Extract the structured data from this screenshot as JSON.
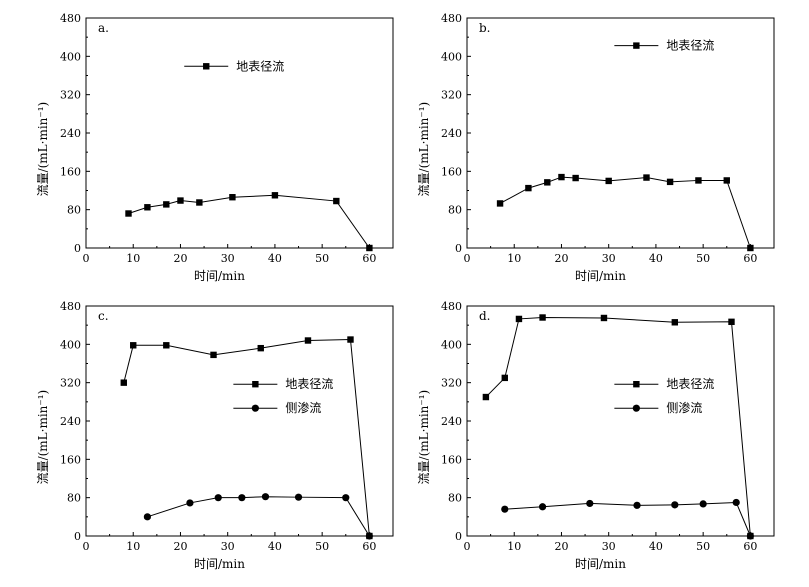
{
  "chart_data": [
    {
      "type": "line",
      "panel_label": "a.",
      "xlabel": "时间/min",
      "ylabel": "流量/(mL·min⁻¹)",
      "xlim": [
        0,
        65
      ],
      "ylim": [
        0,
        480
      ],
      "xticks": [
        0,
        10,
        20,
        30,
        40,
        50,
        60
      ],
      "yticks": [
        0,
        80,
        160,
        240,
        320,
        400,
        480
      ],
      "legend_position": "upper-center",
      "series": [
        {
          "name": "地表径流",
          "marker": "square",
          "x": [
            9,
            13,
            17,
            20,
            24,
            31,
            40,
            53,
            60
          ],
          "y": [
            72,
            85,
            91,
            99,
            95,
            106,
            110,
            98,
            0
          ]
        }
      ]
    },
    {
      "type": "line",
      "panel_label": "b.",
      "xlabel": "时间/min",
      "ylabel": "流量/(mL·min⁻¹)",
      "xlim": [
        0,
        65
      ],
      "ylim": [
        0,
        480
      ],
      "xticks": [
        0,
        10,
        20,
        30,
        40,
        50,
        60
      ],
      "yticks": [
        0,
        80,
        160,
        240,
        320,
        400,
        480
      ],
      "legend_position": "top-right",
      "series": [
        {
          "name": "地表径流",
          "marker": "square",
          "x": [
            7,
            13,
            17,
            20,
            23,
            30,
            38,
            43,
            49,
            55,
            60
          ],
          "y": [
            93,
            125,
            137,
            148,
            146,
            140,
            147,
            138,
            141,
            141,
            0
          ]
        }
      ]
    },
    {
      "type": "line",
      "panel_label": "c.",
      "xlabel": "时间/min",
      "ylabel": "流量/(mL·min⁻¹)",
      "xlim": [
        0,
        65
      ],
      "ylim": [
        0,
        480
      ],
      "xticks": [
        0,
        10,
        20,
        30,
        40,
        50,
        60
      ],
      "yticks": [
        0,
        80,
        160,
        240,
        320,
        400,
        480
      ],
      "legend_position": "middle-right",
      "series": [
        {
          "name": "地表径流",
          "marker": "square",
          "x": [
            8,
            10,
            17,
            27,
            37,
            47,
            56,
            60
          ],
          "y": [
            320,
            398,
            398,
            378,
            392,
            408,
            410,
            0
          ]
        },
        {
          "name": "侧渗流",
          "marker": "circle",
          "x": [
            13,
            22,
            28,
            33,
            38,
            45,
            55,
            60
          ],
          "y": [
            40,
            69,
            80,
            80,
            82,
            81,
            80,
            0
          ]
        }
      ]
    },
    {
      "type": "line",
      "panel_label": "d.",
      "xlabel": "时间/min",
      "ylabel": "流量/(mL·min⁻¹)",
      "xlim": [
        0,
        65
      ],
      "ylim": [
        0,
        480
      ],
      "xticks": [
        0,
        10,
        20,
        30,
        40,
        50,
        60
      ],
      "yticks": [
        0,
        80,
        160,
        240,
        320,
        400,
        480
      ],
      "legend_position": "middle-right",
      "series": [
        {
          "name": "地表径流",
          "marker": "square",
          "x": [
            4,
            8,
            11,
            16,
            29,
            44,
            56,
            60
          ],
          "y": [
            290,
            330,
            453,
            456,
            455,
            446,
            447,
            0
          ]
        },
        {
          "name": "侧渗流",
          "marker": "circle",
          "x": [
            8,
            16,
            26,
            36,
            44,
            50,
            57,
            60
          ],
          "y": [
            56,
            61,
            68,
            64,
            65,
            67,
            70,
            0
          ]
        }
      ]
    }
  ]
}
